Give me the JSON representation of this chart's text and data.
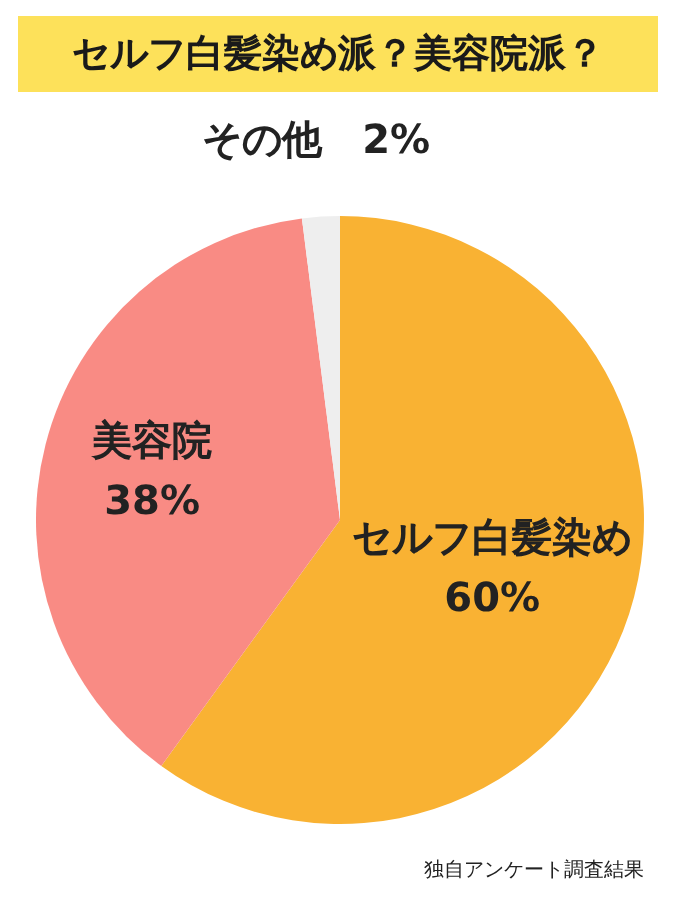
{
  "chart_data": {
    "type": "pie",
    "title": "セルフ白髪染め派？美容院派？",
    "categories": [
      "セルフ白髪染め",
      "美容院",
      "その他"
    ],
    "values": [
      60,
      38,
      2
    ],
    "value_labels": [
      "60%",
      "38%",
      "2%"
    ],
    "colors": [
      "#f9b233",
      "#f98b84",
      "#eeeeee"
    ],
    "annotations": [
      "独自アンケート調査結果"
    ]
  }
}
